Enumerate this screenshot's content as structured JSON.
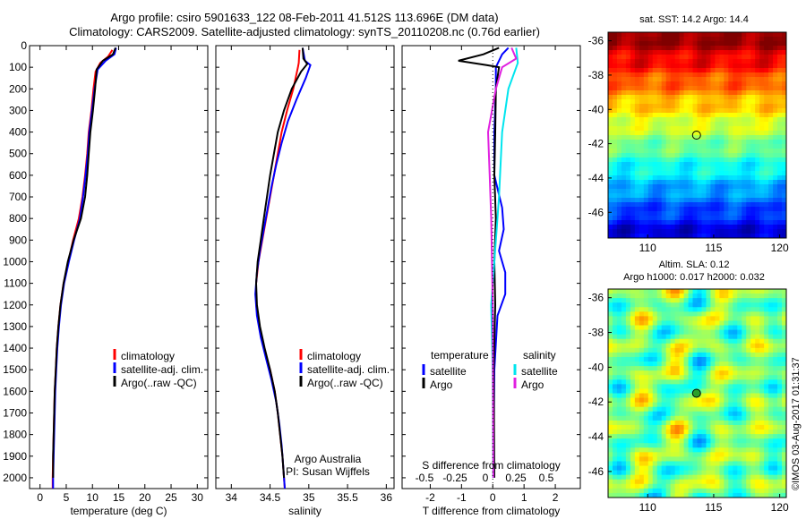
{
  "title_line1": "Argo profile: csiro 5901633_122 08-Feb-2011 41.512S 113.696E (DM data)",
  "title_line2": "Climatology: CARS2009. Satellite-adjusted climatology: synTS_20110208.nc (0.76d earlier)",
  "sst_title": "sat. SST: 14.2  Argo: 14.4",
  "sla_title_line1": "Altim. SLA: 0.12",
  "sla_title_line2": "Argo h1000: 0.017 h2000: 0.032",
  "watermark": "©IMOS 03-Aug-2017 01:31:37",
  "colors": {
    "climatology": "#ff0000",
    "satellite": "#0000ff",
    "argo": "#000000",
    "sat_s": "#00e5ee",
    "argo_s": "#e020e0"
  },
  "chart_data": [
    {
      "type": "line",
      "xlabel": "temperature (deg C)",
      "xlim": [
        -2,
        32
      ],
      "ylim": [
        0,
        2050
      ],
      "xticks": [
        "0",
        "5",
        "10",
        "15",
        "20",
        "25",
        "30"
      ],
      "yticks": [
        "0",
        "100",
        "200",
        "300",
        "400",
        "500",
        "600",
        "700",
        "800",
        "900",
        "1000",
        "1100",
        "1200",
        "1300",
        "1400",
        "1500",
        "1600",
        "1700",
        "1800",
        "1900",
        "2000"
      ],
      "legend": [
        "climatology",
        "satellite-adj. clim.",
        "Argo(..raw -QC)"
      ],
      "series": [
        {
          "name": "climatology",
          "color": "#ff0000",
          "points": [
            [
              13.8,
              20
            ],
            [
              13,
              50
            ],
            [
              11.5,
              80
            ],
            [
              10.6,
              120
            ],
            [
              10.2,
              200
            ],
            [
              9.8,
              300
            ],
            [
              9.3,
              400
            ],
            [
              9,
              500
            ],
            [
              8.6,
              600
            ],
            [
              8.1,
              700
            ],
            [
              7.4,
              800
            ],
            [
              6.3,
              900
            ],
            [
              5.4,
              1000
            ],
            [
              4.5,
              1100
            ],
            [
              3.9,
              1200
            ],
            [
              3.5,
              1300
            ],
            [
              3.2,
              1400
            ],
            [
              3,
              1500
            ],
            [
              2.8,
              1600
            ],
            [
              2.7,
              1700
            ],
            [
              2.6,
              1800
            ],
            [
              2.5,
              1900
            ],
            [
              2.4,
              2000
            ],
            [
              2.4,
              2050
            ]
          ]
        },
        {
          "name": "satellite-adj. clim.",
          "color": "#0000ff",
          "points": [
            [
              14.5,
              10
            ],
            [
              14.2,
              40
            ],
            [
              12.5,
              70
            ],
            [
              11,
              110
            ],
            [
              10.4,
              200
            ],
            [
              9.9,
              300
            ],
            [
              9.4,
              400
            ],
            [
              9.1,
              500
            ],
            [
              8.7,
              600
            ],
            [
              8.2,
              700
            ],
            [
              7.6,
              800
            ],
            [
              6.5,
              900
            ],
            [
              5.5,
              1000
            ],
            [
              4.6,
              1100
            ],
            [
              4,
              1200
            ],
            [
              3.6,
              1300
            ],
            [
              3.3,
              1400
            ],
            [
              3.1,
              1500
            ],
            [
              2.9,
              1600
            ],
            [
              2.8,
              1700
            ],
            [
              2.7,
              1800
            ],
            [
              2.6,
              1900
            ],
            [
              2.5,
              2000
            ],
            [
              2.5,
              2050
            ]
          ]
        },
        {
          "name": "Argo(..raw -QC)",
          "color": "#000000",
          "points": [
            [
              14.4,
              10
            ],
            [
              13.9,
              40
            ],
            [
              12,
              70
            ],
            [
              10.8,
              110
            ],
            [
              10.5,
              200
            ],
            [
              10.1,
              300
            ],
            [
              9.6,
              400
            ],
            [
              9.3,
              500
            ],
            [
              9,
              600
            ],
            [
              8.6,
              700
            ],
            [
              7.8,
              800
            ],
            [
              6.4,
              900
            ],
            [
              5.3,
              1000
            ],
            [
              4.5,
              1100
            ],
            [
              3.9,
              1200
            ],
            [
              3.5,
              1300
            ],
            [
              3.2,
              1400
            ],
            [
              3,
              1500
            ],
            [
              2.8,
              1600
            ],
            [
              2.7,
              1700
            ],
            [
              2.6,
              1800
            ],
            [
              2.5,
              1900
            ],
            [
              2.5,
              2000
            ]
          ]
        }
      ]
    },
    {
      "type": "line",
      "xlabel": "salinity",
      "xlim": [
        33.8,
        36.1
      ],
      "ylim": [
        0,
        2050
      ],
      "xticks": [
        "34",
        "34.5",
        "35",
        "35.5",
        "36"
      ],
      "legend": [
        "climatology",
        "satellite-adj. clim.",
        "Argo(..raw -QC)"
      ],
      "annotation_line1": "Argo Australia",
      "annotation_line2": "PI: Susan Wijffels",
      "series": [
        {
          "name": "climatology",
          "color": "#ff0000",
          "points": [
            [
              34.88,
              20
            ],
            [
              34.87,
              80
            ],
            [
              34.86,
              100
            ],
            [
              34.8,
              200
            ],
            [
              34.72,
              300
            ],
            [
              34.65,
              400
            ],
            [
              34.6,
              500
            ],
            [
              34.55,
              600
            ],
            [
              34.5,
              700
            ],
            [
              34.45,
              800
            ],
            [
              34.4,
              900
            ],
            [
              34.35,
              1000
            ],
            [
              34.32,
              1100
            ],
            [
              34.32,
              1200
            ],
            [
              34.36,
              1300
            ],
            [
              34.42,
              1400
            ],
            [
              34.5,
              1500
            ],
            [
              34.56,
              1600
            ],
            [
              34.6,
              1700
            ],
            [
              34.63,
              1800
            ],
            [
              34.66,
              1900
            ],
            [
              34.68,
              2000
            ],
            [
              34.69,
              2050
            ]
          ]
        },
        {
          "name": "satellite-adj. clim.",
          "color": "#0000ff",
          "points": [
            [
              34.92,
              10
            ],
            [
              34.95,
              70
            ],
            [
              35.02,
              90
            ],
            [
              34.96,
              150
            ],
            [
              34.84,
              250
            ],
            [
              34.73,
              350
            ],
            [
              34.65,
              450
            ],
            [
              34.58,
              550
            ],
            [
              34.52,
              650
            ],
            [
              34.47,
              750
            ],
            [
              34.42,
              850
            ],
            [
              34.37,
              950
            ],
            [
              34.33,
              1050
            ],
            [
              34.31,
              1150
            ],
            [
              34.33,
              1250
            ],
            [
              34.38,
              1350
            ],
            [
              34.45,
              1450
            ],
            [
              34.52,
              1550
            ],
            [
              34.58,
              1650
            ],
            [
              34.62,
              1750
            ],
            [
              34.65,
              1850
            ],
            [
              34.67,
              1950
            ],
            [
              34.69,
              2050
            ]
          ]
        },
        {
          "name": "Argo(..raw -QC)",
          "color": "#000000",
          "points": [
            [
              34.92,
              10
            ],
            [
              34.93,
              60
            ],
            [
              34.98,
              85
            ],
            [
              34.9,
              120
            ],
            [
              34.78,
              200
            ],
            [
              34.68,
              300
            ],
            [
              34.6,
              400
            ],
            [
              34.55,
              500
            ],
            [
              34.5,
              600
            ],
            [
              34.46,
              700
            ],
            [
              34.42,
              800
            ],
            [
              34.38,
              900
            ],
            [
              34.34,
              1000
            ],
            [
              34.32,
              1100
            ],
            [
              34.33,
              1200
            ],
            [
              34.37,
              1300
            ],
            [
              34.43,
              1400
            ],
            [
              34.5,
              1500
            ],
            [
              34.56,
              1600
            ],
            [
              34.6,
              1700
            ],
            [
              34.63,
              1800
            ],
            [
              34.66,
              1900
            ],
            [
              34.68,
              2000
            ]
          ]
        }
      ]
    },
    {
      "type": "line",
      "xlabel": "T difference from climatology",
      "xlabel_top": "S difference from climatology",
      "xlim": [
        -2.9,
        2.8
      ],
      "ylim": [
        0,
        2050
      ],
      "xticks": [
        "-2",
        "-1",
        "0",
        "1",
        "2"
      ],
      "xticks_top": [
        "-0.5",
        "-0.25",
        "0",
        "0.25",
        "0.5"
      ],
      "legend_t_title": "temperature",
      "legend_s_title": "salinity",
      "legend": [
        "satellite",
        "Argo",
        "satellite",
        "Argo"
      ],
      "series": [
        {
          "name": "temperature satellite",
          "color": "#0000ff",
          "points": [
            [
              0.5,
              10
            ],
            [
              0.3,
              40
            ],
            [
              0.1,
              100
            ],
            [
              0.1,
              200
            ],
            [
              0.05,
              400
            ],
            [
              0.05,
              600
            ],
            [
              0.3,
              750
            ],
            [
              0.35,
              850
            ],
            [
              0.2,
              950
            ],
            [
              0.4,
              1050
            ],
            [
              0.4,
              1150
            ],
            [
              0.15,
              1250
            ],
            [
              0.05,
              1500
            ],
            [
              0.02,
              2000
            ]
          ]
        },
        {
          "name": "temperature Argo",
          "color": "#000000",
          "points": [
            [
              0.2,
              10
            ],
            [
              -0.3,
              40
            ],
            [
              -1.1,
              70
            ],
            [
              -0.2,
              90
            ],
            [
              0.2,
              100
            ],
            [
              0.1,
              200
            ],
            [
              0.08,
              400
            ],
            [
              0.05,
              600
            ],
            [
              0.1,
              800
            ],
            [
              0.05,
              1000
            ],
            [
              0.08,
              1200
            ],
            [
              0.03,
              1500
            ],
            [
              0.05,
              2000
            ]
          ]
        },
        {
          "name": "salinity satellite",
          "color": "#00e5ee",
          "points": [
            [
              0.75,
              10
            ],
            [
              0.8,
              80
            ],
            [
              0.5,
              200
            ],
            [
              0.3,
              400
            ],
            [
              0.2,
              700
            ],
            [
              0.05,
              1000
            ],
            [
              -0.05,
              1200
            ],
            [
              0,
              1500
            ],
            [
              0.02,
              2000
            ]
          ]
        },
        {
          "name": "salinity Argo",
          "color": "#e020e0",
          "points": [
            [
              0.6,
              10
            ],
            [
              0.75,
              60
            ],
            [
              0.3,
              100
            ],
            [
              0.1,
              200
            ],
            [
              -0.15,
              400
            ],
            [
              -0.1,
              600
            ],
            [
              -0.05,
              800
            ],
            [
              0,
              1200
            ],
            [
              0.02,
              2000
            ]
          ]
        }
      ]
    },
    {
      "type": "heatmap",
      "title": "sat. SST: 14.2  Argo: 14.4",
      "xlim": [
        107,
        120.5
      ],
      "ylim": [
        -47.5,
        -35.5
      ],
      "xticks": [
        "110",
        "115",
        "120"
      ],
      "yticks": [
        "-36",
        "-38",
        "-40",
        "-42",
        "-44",
        "-46"
      ],
      "marker": {
        "lon": 113.7,
        "lat": -41.5
      }
    },
    {
      "type": "heatmap",
      "title": "Altim. SLA: 0.12",
      "xlim": [
        107,
        120.5
      ],
      "ylim": [
        -47.5,
        -35.5
      ],
      "xticks": [
        "110",
        "115",
        "120"
      ],
      "yticks": [
        "-36",
        "-38",
        "-40",
        "-42",
        "-44",
        "-46"
      ],
      "marker": {
        "lon": 113.7,
        "lat": -41.5
      }
    }
  ]
}
